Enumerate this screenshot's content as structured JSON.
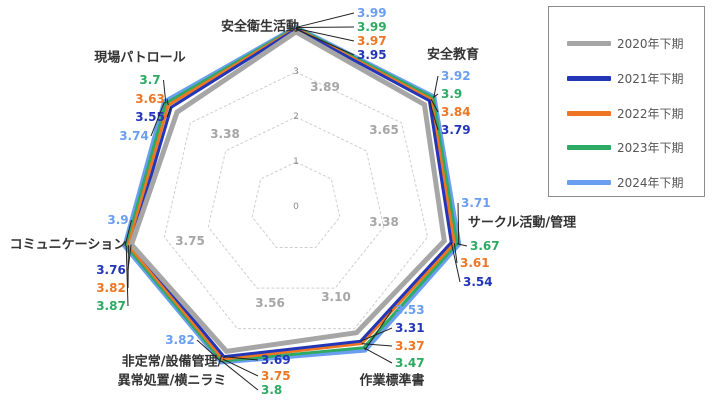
{
  "chart_data": {
    "type": "radar",
    "axes": [
      "安全衛生活動",
      "安全教育",
      "サークル活動/管理",
      "作業標準書",
      "非定常/設備管理/異常処置/横ニラミ",
      "コミュニケーション",
      "現場パトロール"
    ],
    "axis_labels": [
      [
        "安全衛生活動"
      ],
      [
        "安全教育"
      ],
      [
        "サークル活動/管理"
      ],
      [
        "作業標準書"
      ],
      [
        "非定常/設備管理/",
        "異常処置/横ニラミ"
      ],
      [
        "コミュニケーション"
      ],
      [
        "現場パトロール"
      ]
    ],
    "rlim": [
      0,
      4
    ],
    "ticks": [
      "0",
      "1",
      "2",
      "3",
      "4"
    ],
    "series": [
      {
        "name": "2020年下期",
        "color": "#a6a6a6",
        "values": [
          3.89,
          3.65,
          3.38,
          3.1,
          3.56,
          3.75,
          3.38
        ]
      },
      {
        "name": "2021年下期",
        "color": "#2336b8",
        "values": [
          3.95,
          3.79,
          3.54,
          3.31,
          3.69,
          3.76,
          3.55
        ]
      },
      {
        "name": "2022年下期",
        "color": "#ee7623",
        "values": [
          3.97,
          3.84,
          3.61,
          3.37,
          3.75,
          3.82,
          3.63
        ]
      },
      {
        "name": "2023年下期",
        "color": "#2daa63",
        "values": [
          3.99,
          3.9,
          3.67,
          3.47,
          3.8,
          3.87,
          3.7
        ]
      },
      {
        "name": "2024年下期",
        "color": "#6a9ef0",
        "values": [
          3.99,
          3.92,
          3.71,
          3.53,
          3.82,
          3.9,
          3.74
        ]
      }
    ],
    "data_labels": [
      [
        "3.89",
        "3.65",
        "3.38",
        "3.10",
        "3.56",
        "3.75",
        "3.38"
      ],
      [
        "3.95",
        "3.79",
        "3.54",
        "3.31",
        "3.69",
        "3.76",
        "3.55"
      ],
      [
        "3.97",
        "3.84",
        "3.61",
        "3.37",
        "3.75",
        "3.82",
        "3.63"
      ],
      [
        "3.99",
        "3.9",
        "3.67",
        "3.47",
        "3.8",
        "3.87",
        "3.7"
      ],
      [
        "3.99",
        "3.92",
        "3.71",
        "3.53",
        "3.82",
        "3.9",
        "3.74"
      ]
    ],
    "legend_position": "right",
    "grid": true
  }
}
